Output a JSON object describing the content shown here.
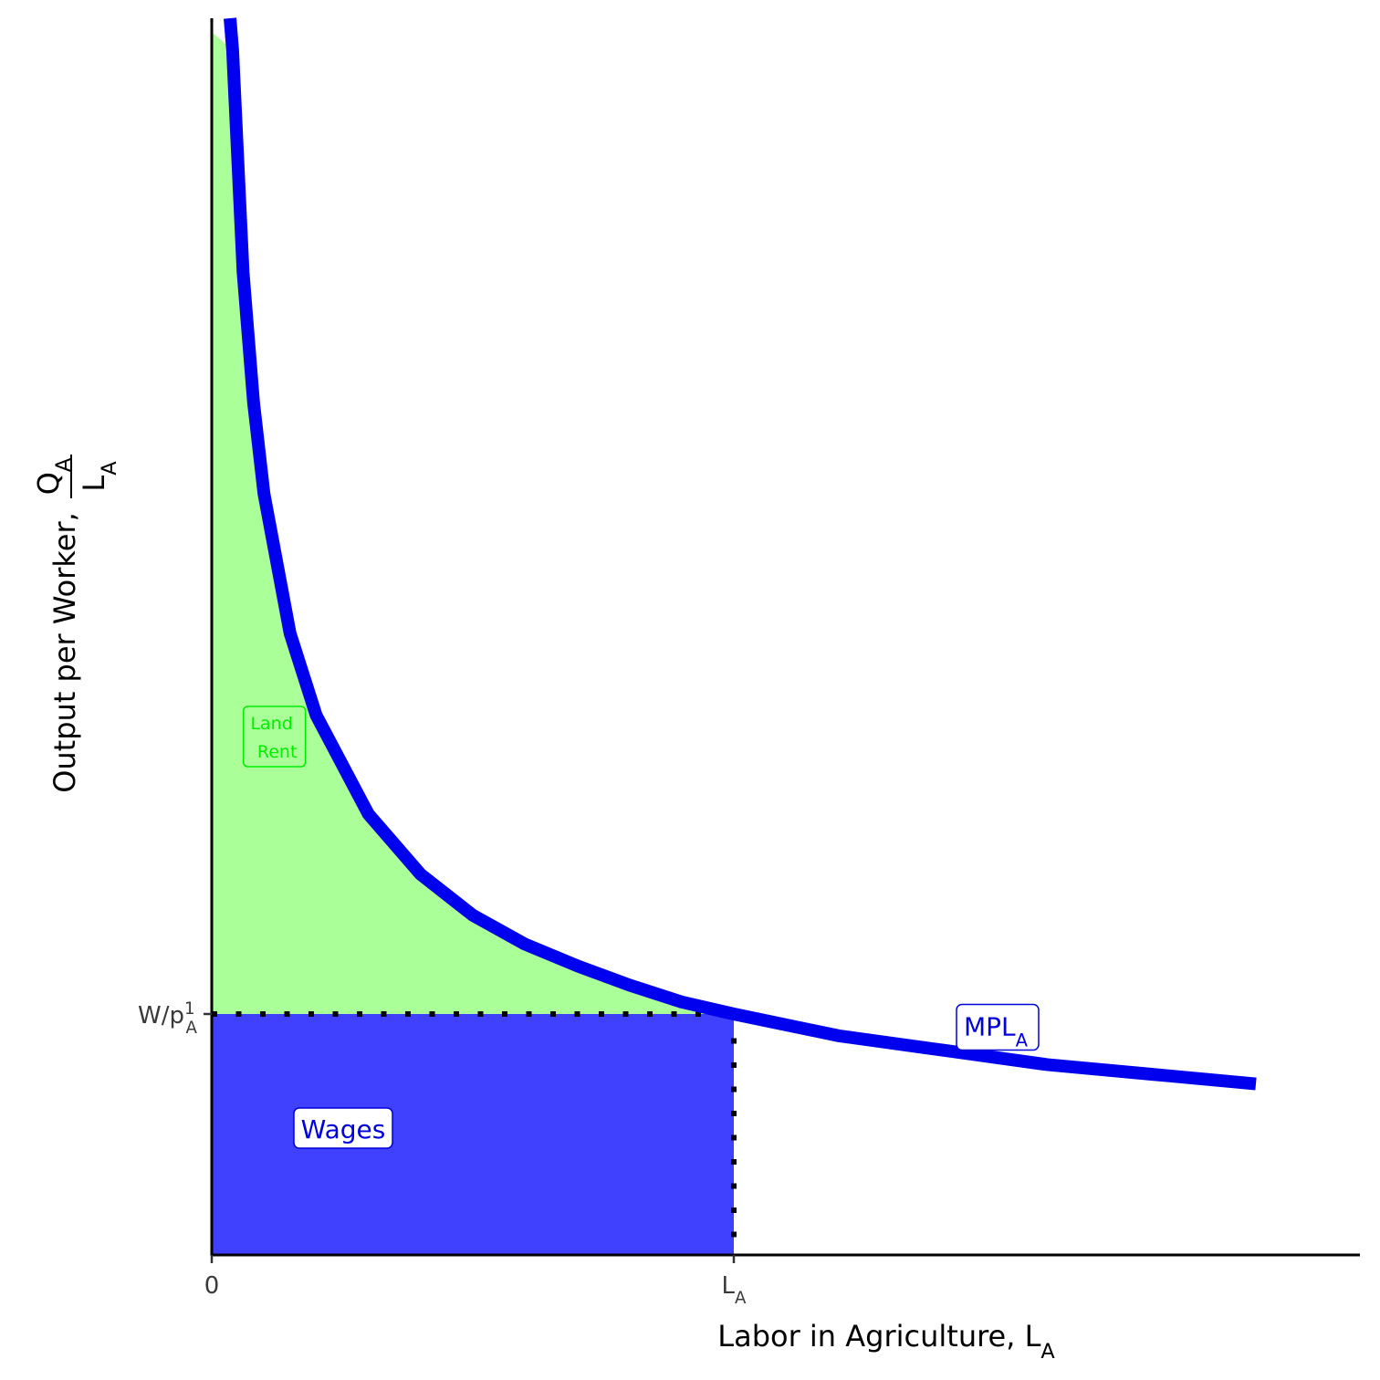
{
  "chart_data": {
    "type": "area",
    "title": "",
    "xlabel": "Labor in Agriculture, L",
    "xlabel_sub": "A",
    "ylabel_prefix": "Output per Worker,",
    "ylabel_numerator": "Q",
    "ylabel_numerator_sub": "A",
    "ylabel_denominator": "L",
    "ylabel_denominator_sub": "A",
    "x_ticks": [
      {
        "value": 0,
        "label": "0",
        "sub": ""
      },
      {
        "value": 1,
        "label": "L",
        "sub": "A"
      }
    ],
    "y_ticks": [
      {
        "value": 1,
        "label": "W/p",
        "sub": "A",
        "sup": "1"
      }
    ],
    "xlim": [
      0,
      2.2
    ],
    "ylim": [
      0,
      5
    ],
    "grid": false,
    "series": [
      {
        "name": "MPL",
        "name_sub": "A",
        "type": "line",
        "x": [
          0.04,
          0.06,
          0.08,
          0.1,
          0.15,
          0.2,
          0.3,
          0.4,
          0.5,
          0.6,
          0.7,
          0.8,
          0.9,
          1.0,
          1.2,
          1.4,
          1.6,
          1.8,
          2.0
        ],
        "y": [
          5.0,
          4.08,
          3.54,
          3.16,
          2.58,
          2.24,
          1.83,
          1.58,
          1.41,
          1.29,
          1.2,
          1.12,
          1.05,
          1.0,
          0.91,
          0.85,
          0.79,
          0.75,
          0.71
        ]
      }
    ],
    "areas": [
      {
        "name": "Wages",
        "color": "#4040ff",
        "x_range": [
          0,
          1
        ],
        "y_range": [
          0,
          1
        ]
      },
      {
        "name": "Land Rent",
        "color": "#aaff99",
        "x_range": [
          0,
          1
        ],
        "between": [
          "MPL",
          "W/p"
        ]
      }
    ],
    "annotations": {
      "land_rent": {
        "line1": "Land",
        "line2": "Rent",
        "color": "#00ee00",
        "x": 0.12,
        "y": 2.0
      },
      "wages": {
        "text": "Wages",
        "color": "#0000dd",
        "x": 0.25,
        "y": 0.5
      },
      "mpl": {
        "text": "MPL",
        "sub": "A",
        "color": "#0000dd",
        "x": 1.5,
        "y": 0.82
      }
    },
    "colors": {
      "curve": "#0000ee",
      "wages": "#4040ff",
      "land_rent": "#aaff99",
      "axis": "#000000",
      "reference_lines": "#000000"
    }
  }
}
